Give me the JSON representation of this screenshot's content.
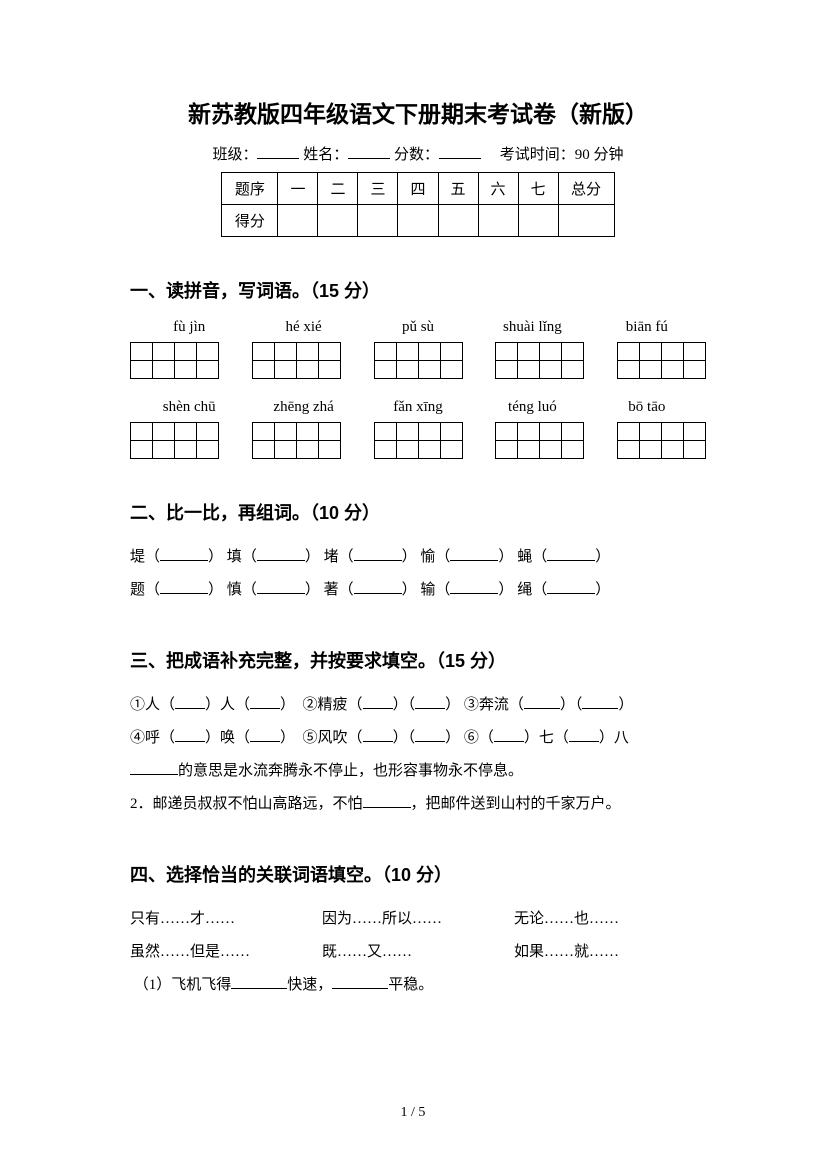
{
  "title": "新苏教版四年级语文下册期末考试卷（新版）",
  "info": {
    "class_label": "班级：",
    "name_label": "姓名：",
    "score_label": "分数：",
    "time_label": "考试时间：90 分钟"
  },
  "score_table": {
    "header_label": "题序",
    "columns": [
      "一",
      "二",
      "三",
      "四",
      "五",
      "六",
      "七",
      "总分"
    ],
    "score_label": "得分"
  },
  "section1": {
    "heading": "一、读拼音，写词语。（15 分）",
    "row1": [
      "fù  jìn",
      "hé xié",
      "pǔ sù",
      "shuài lǐng",
      "biān fú"
    ],
    "row2": [
      "shèn chū",
      "zhēng zhá",
      "fǎn xīng",
      "téng luó",
      "bō tāo"
    ]
  },
  "section2": {
    "heading": "二、比一比，再组词。（10 分）",
    "line1_chars": [
      "堤",
      "填",
      "堵",
      "愉",
      "蝇"
    ],
    "line2_chars": [
      "题",
      "慎",
      "著",
      "输",
      "绳"
    ]
  },
  "section3": {
    "heading": "三、把成语补充完整，并按要求填空。（15 分）",
    "item1_a": "①人（",
    "item1_b": "）人（",
    "item1_c": "）",
    "item2_a": "②精疲（",
    "item2_b": "）（",
    "item2_c": "）",
    "item3_a": "③奔流（",
    "item3_b": "）（",
    "item3_c": "）",
    "item4_a": "④呼（",
    "item4_b": "）唤（",
    "item4_c": "）",
    "item5_a": "⑤风吹（",
    "item5_b": "）（",
    "item5_c": "）",
    "item6_a": "⑥（",
    "item6_b": "）七（",
    "item6_c": "）八",
    "explain": "的意思是水流奔腾永不停止，也形容事物永不停息。",
    "q2": "2．邮递员叔叔不怕山高路远，不怕",
    "q2_end": "，把邮件送到山村的千家万户。"
  },
  "section4": {
    "heading": "四、选择恰当的关联词语填空。（10 分）",
    "conj": [
      "只有……才……",
      "因为……所以……",
      "无论……也……",
      "虽然……但是……",
      "既……又……",
      "如果……就……"
    ],
    "q1_a": "（1）飞机飞得",
    "q1_b": "快速，",
    "q1_c": "平稳。"
  },
  "page_num": "1 / 5"
}
